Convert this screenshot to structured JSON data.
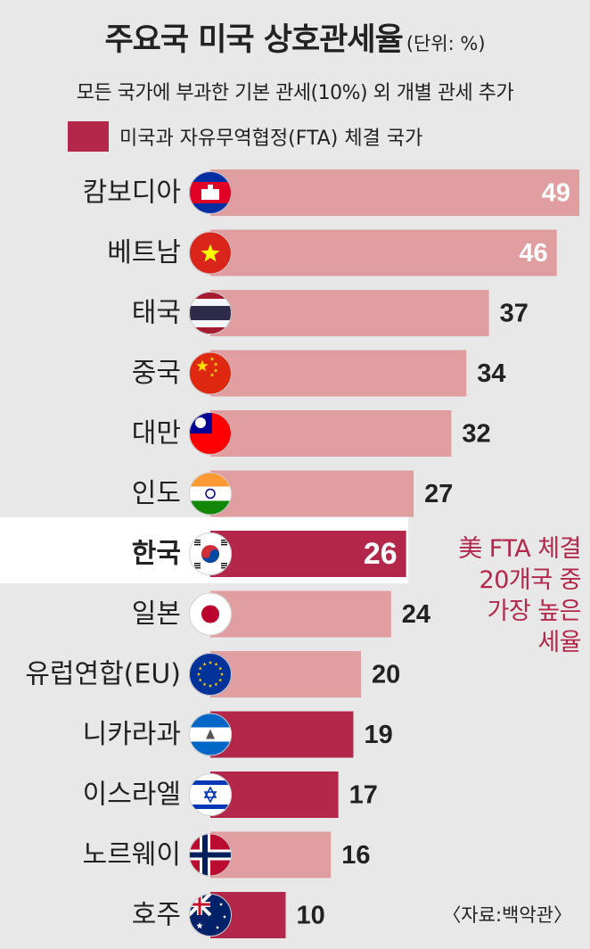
{
  "header": {
    "title": "주요국 미국 상호관세율",
    "unit": "(단위: %)",
    "subtitle": "모든 국가에 부과한 기본 관세(10%) 외 개별 관세 추가"
  },
  "legend": {
    "label": "미국과 자유무역협정(FTA) 체결 국가",
    "color": "#b3284a"
  },
  "colors": {
    "non_fta_bar": "#e09ea0",
    "fta_bar": "#b3284a",
    "korea_bar": "#b3284a",
    "callout_text": "#b3284a",
    "highlight_band": "#ffffff"
  },
  "callout": {
    "lines": [
      "美 FTA 체결",
      "20개국 중",
      "가장 높은",
      "세율"
    ]
  },
  "source": "〈자료:백악관〉",
  "chart_data": {
    "type": "bar",
    "orientation": "horizontal",
    "categories": [
      "캄보디아",
      "베트남",
      "태국",
      "중국",
      "대만",
      "인도",
      "한국",
      "일본",
      "유럽연합(EU)",
      "니카라과",
      "이스라엘",
      "노르웨이",
      "호주"
    ],
    "values": [
      49,
      46,
      37,
      34,
      32,
      27,
      26,
      24,
      20,
      19,
      17,
      16,
      10
    ],
    "fta": [
      false,
      false,
      false,
      false,
      false,
      false,
      true,
      false,
      false,
      true,
      true,
      false,
      true
    ],
    "highlight": "한국",
    "flags": [
      "cambodia-flag-icon",
      "vietnam-flag-icon",
      "thailand-flag-icon",
      "china-flag-icon",
      "taiwan-flag-icon",
      "india-flag-icon",
      "korea-flag-icon",
      "japan-flag-icon",
      "eu-flag-icon",
      "nicaragua-flag-icon",
      "israel-flag-icon",
      "norway-flag-icon",
      "australia-flag-icon"
    ],
    "value_label_position": [
      "inside",
      "inside",
      "outside",
      "outside",
      "outside",
      "outside",
      "inside",
      "outside",
      "outside",
      "outside",
      "outside",
      "outside",
      "outside"
    ],
    "title": "주요국 미국 상호관세율",
    "xlim": [
      0,
      49
    ]
  }
}
